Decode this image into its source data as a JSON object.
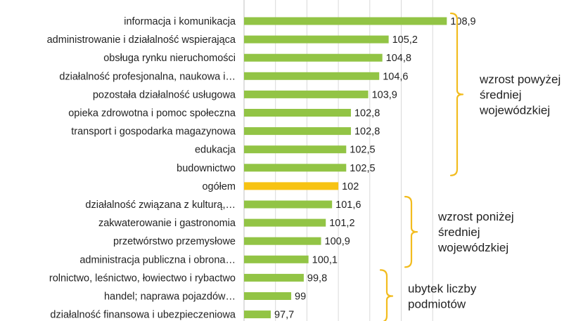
{
  "chart_data": {
    "type": "bar",
    "orientation": "horizontal",
    "title": "",
    "xlabel": "",
    "ylabel": "",
    "xlim": [
      96,
      109
    ],
    "grid": true,
    "categories": [
      "informacja i komunikacja",
      "administrowanie i działalność wspierająca",
      "obsługa rynku nieruchomości",
      "działalność profesjonalna, naukowa i…",
      "pozostała działalność usługowa",
      "opieka zdrowotna i pomoc społeczna",
      "transport i gospodarka magazynowa",
      "edukacja",
      "budownictwo",
      "ogółem",
      "działalność związana z kulturą,…",
      "zakwaterowanie i gastronomia",
      "przetwórstwo przemysłowe",
      "administracja publiczna i obrona…",
      "rolnictwo, leśnictwo, łowiectwo i rybactwo",
      "handel; naprawa pojazdów…",
      "działalność finansowa i ubezpieczeniowa"
    ],
    "values": [
      108.9,
      105.2,
      104.8,
      104.6,
      103.9,
      102.8,
      102.8,
      102.5,
      102.5,
      102,
      101.6,
      101.2,
      100.9,
      100.1,
      99.8,
      99,
      97.7
    ],
    "value_labels": [
      "108,9",
      "105,2",
      "104,8",
      "104,6",
      "103,9",
      "102,8",
      "102,8",
      "102,5",
      "102,5",
      "102",
      "101,6",
      "101,2",
      "100,9",
      "100,1",
      "99,8",
      "99",
      "97,7"
    ],
    "highlight_index": 9,
    "groups": [
      {
        "text_lines": [
          "wzrost powyżej",
          "średniej",
          "wojewódzkiej"
        ],
        "from": 0,
        "to": 8
      },
      {
        "text_lines": [
          "wzrost poniżej",
          "średniej",
          "wojewódzkiej"
        ],
        "from": 10,
        "to": 13
      },
      {
        "text_lines": [
          "ubytek liczby",
          "podmiotów"
        ],
        "from": 14,
        "to": 16
      }
    ]
  },
  "colors": {
    "bar": "#92c445",
    "highlight_bar": "#f7c313",
    "bracket": "#f2bc1f"
  }
}
